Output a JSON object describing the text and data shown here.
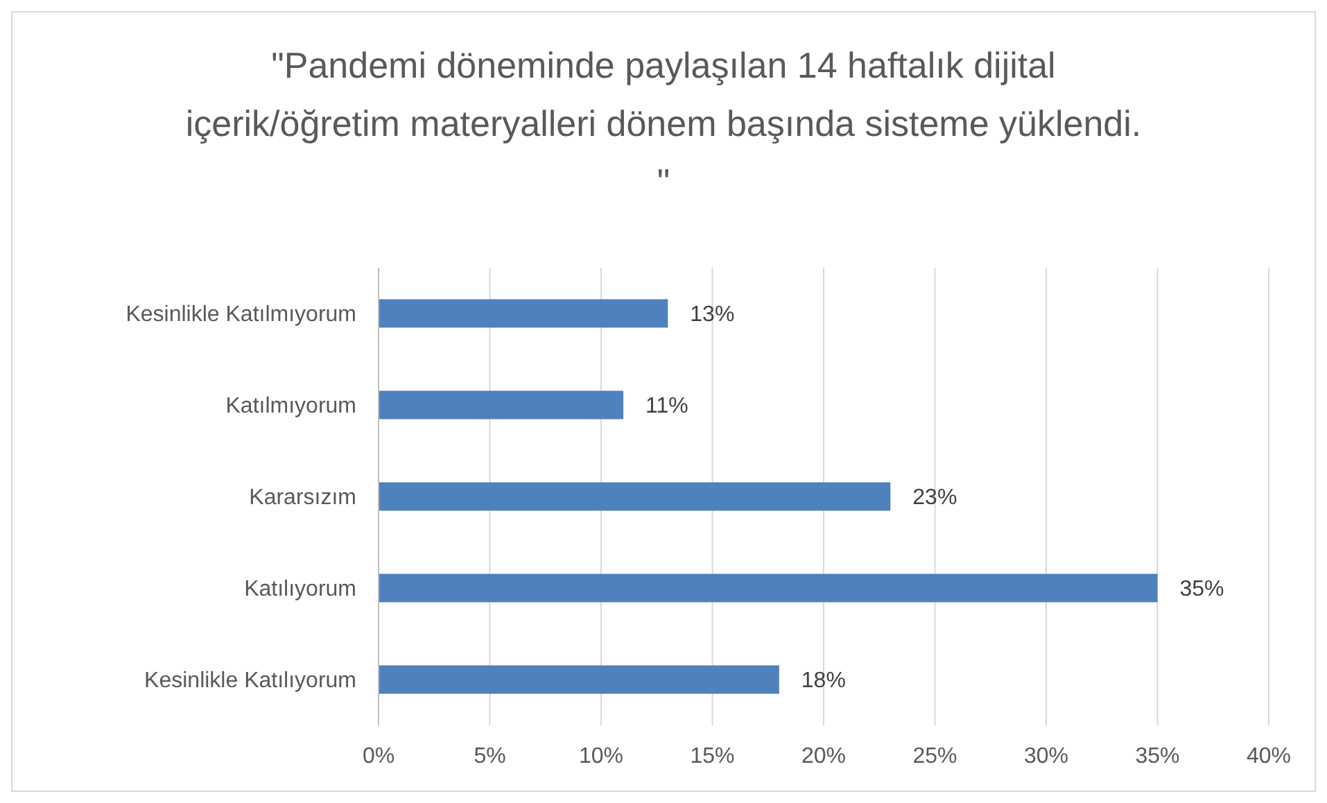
{
  "chart_data": {
    "type": "bar",
    "orientation": "horizontal",
    "title": "\"Pandemi döneminde paylaşılan 14 haftalık dijital içerik/öğretim materyalleri dönem başında sisteme yüklendi. \"",
    "categories": [
      "Kesinlikle Katılmıyorum",
      "Katılmıyorum",
      "Kararsızım",
      "Katılıyorum",
      "Kesinlikle Katılıyorum"
    ],
    "values": [
      13,
      11,
      23,
      35,
      18
    ],
    "value_labels": [
      "13%",
      "11%",
      "23%",
      "35%",
      "18%"
    ],
    "color": "#4f81bd",
    "xlim": [
      0,
      40
    ],
    "xticks": [
      {
        "value": 0,
        "label": "0%"
      },
      {
        "value": 5,
        "label": "5%"
      },
      {
        "value": 10,
        "label": "10%"
      },
      {
        "value": 15,
        "label": "15%"
      },
      {
        "value": 20,
        "label": "20%"
      },
      {
        "value": 25,
        "label": "25%"
      },
      {
        "value": 30,
        "label": "30%"
      },
      {
        "value": 35,
        "label": "35%"
      },
      {
        "value": 40,
        "label": "40%"
      }
    ],
    "grid": "x"
  }
}
